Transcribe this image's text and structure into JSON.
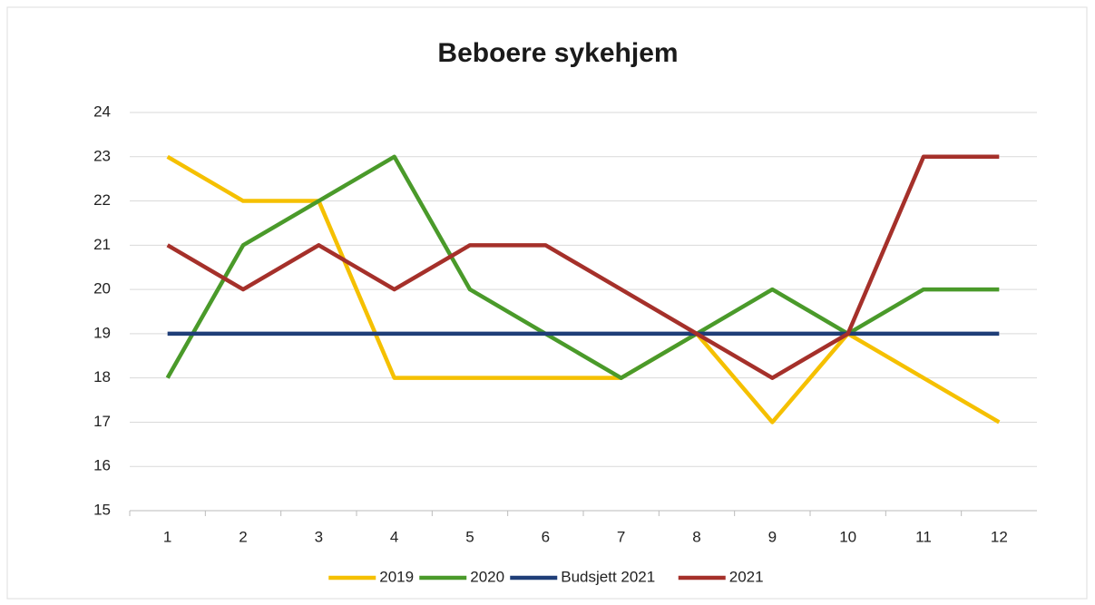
{
  "chart_data": {
    "type": "line",
    "title": "Beboere sykehjem",
    "categories": [
      "1",
      "2",
      "3",
      "4",
      "5",
      "6",
      "7",
      "8",
      "9",
      "10",
      "11",
      "12"
    ],
    "series": [
      {
        "name": "2019",
        "color": "#f5c000",
        "values": [
          23,
          22,
          22,
          18,
          18,
          18,
          18,
          19,
          17,
          19,
          18,
          17
        ]
      },
      {
        "name": "2020",
        "color": "#4a9a2a",
        "values": [
          18,
          21,
          22,
          23,
          20,
          19,
          18,
          19,
          20,
          19,
          20,
          20
        ]
      },
      {
        "name": "Budsjett 2021",
        "color": "#1f3e78",
        "values": [
          19,
          19,
          19,
          19,
          19,
          19,
          19,
          19,
          19,
          19,
          19,
          19
        ]
      },
      {
        "name": "2021",
        "color": "#a5302a",
        "values": [
          21,
          20,
          21,
          20,
          21,
          21,
          20,
          19,
          18,
          19,
          23,
          23
        ]
      }
    ],
    "ylim": [
      15,
      24
    ],
    "yticks": [
      15,
      16,
      17,
      18,
      19,
      20,
      21,
      22,
      23,
      24
    ],
    "grid": true,
    "legend": "bottom"
  }
}
